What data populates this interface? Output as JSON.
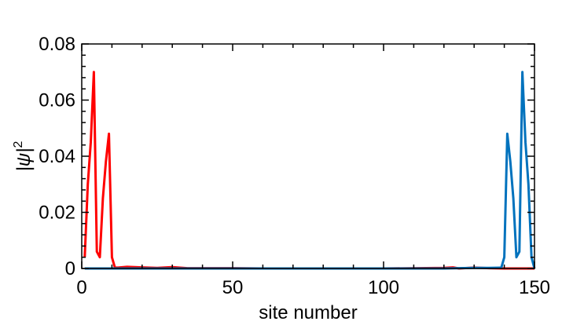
{
  "chart_data": {
    "type": "line",
    "title": "",
    "xlabel": "site number",
    "ylabel": "|ψ|",
    "ylabel_superscript": "2",
    "xlim": [
      0,
      150
    ],
    "ylim": [
      0,
      0.08
    ],
    "xticks": [
      0,
      50,
      100,
      150
    ],
    "xtick_labels": [
      "0",
      "50",
      "100",
      "150"
    ],
    "yticks": [
      0,
      0.02,
      0.04,
      0.06,
      0.08
    ],
    "ytick_labels": [
      "0",
      "0.02",
      "0.04",
      "0.06",
      "0.08"
    ],
    "grid": false,
    "legend": "none",
    "series": [
      {
        "color": "#ff0000",
        "x": [
          1,
          2,
          3,
          4,
          5,
          6,
          7,
          8,
          9,
          10,
          11,
          12,
          15,
          20,
          25,
          30,
          35,
          40,
          50,
          60,
          80,
          100,
          120,
          123,
          125,
          130,
          135,
          140,
          145,
          150
        ],
        "y": [
          0.004,
          0.03,
          0.045,
          0.07,
          0.006,
          0.004,
          0.025,
          0.038,
          0.048,
          0.004,
          0.0003,
          0.0003,
          0.0006,
          0.0004,
          0.0002,
          0.0005,
          0.0001,
          0.0001,
          0.0001,
          0.0,
          0.0,
          0.0,
          0.0002,
          0.0004,
          0.0,
          0.0003,
          0.0001,
          0.0,
          0.0,
          0.0
        ]
      },
      {
        "color": "#0072bd",
        "x": [
          1,
          10,
          30,
          60,
          100,
          120,
          130,
          135,
          139,
          140,
          141,
          142,
          143,
          144,
          145,
          146,
          147,
          148,
          149,
          150
        ],
        "y": [
          0.0,
          0.0,
          0.0,
          0.0,
          0.0,
          0.0,
          0.0002,
          0.0002,
          0.0003,
          0.004,
          0.048,
          0.038,
          0.025,
          0.004,
          0.006,
          0.07,
          0.045,
          0.03,
          0.004,
          0.0
        ]
      }
    ]
  }
}
